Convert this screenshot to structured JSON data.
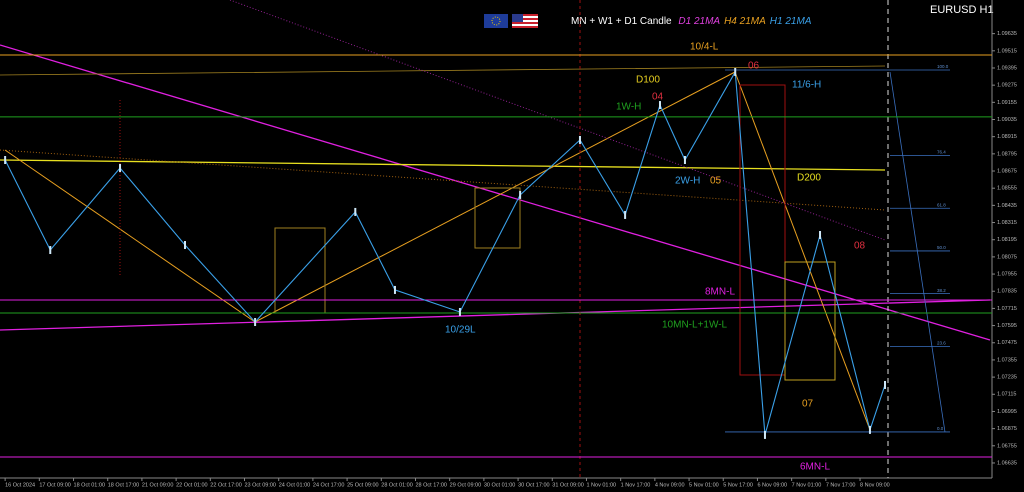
{
  "chart_data": {
    "type": "line",
    "symbol": "EURUSD H1",
    "header": {
      "main": "MN + W1 + D1 Candle",
      "ma": [
        {
          "name": "D1 21MA",
          "color": "#e040e0"
        },
        {
          "name": "H4 21MA",
          "color": "#e8a020"
        },
        {
          "name": "H1 21MA",
          "color": "#3aa0e8"
        }
      ]
    },
    "categories": [
      "16 Oct 2024",
      "17 Oct 09:00",
      "18 Oct 01:00",
      "18 Oct 17:00",
      "21 Oct 09:00",
      "22 Oct 01:00",
      "22 Oct 17:00",
      "23 Oct 09:00",
      "24 Oct 01:00",
      "24 Oct 17:00",
      "25 Oct 09:00",
      "28 Oct 01:00",
      "28 Oct 17:00",
      "29 Oct 09:00",
      "30 Oct 01:00",
      "30 Oct 17:00",
      "31 Oct 09:00",
      "1 Nov 01:00",
      "1 Nov 17:00",
      "4 Nov 09:00",
      "5 Nov 01:00",
      "5 Nov 17:00",
      "6 Nov 09:00",
      "7 Nov 01:00",
      "7 Nov 17:00",
      "8 Nov 09:00"
    ],
    "xlim": [
      -0.15,
      25.73
    ],
    "series": [
      {
        "name": "price",
        "color": "#3aa0e8",
        "x": [
          0,
          1.32,
          3.36,
          5.26,
          7.31,
          10.24,
          11.4,
          13.3,
          15.06,
          16.81,
          18.13,
          19.15,
          19.88,
          21.35,
          22.22,
          23.83,
          25.29,
          25.73
        ],
        "values": [
          1.08752,
          1.08123,
          1.08696,
          1.08158,
          1.0762,
          1.08389,
          1.07844,
          1.0769,
          1.08508,
          1.08892,
          1.08368,
          1.09136,
          1.08752,
          1.09367,
          1.06831,
          1.08228,
          1.06866,
          1.0718
        ]
      }
    ],
    "ylim": [
      1.0653,
      1.0987
    ],
    "yticks": [
      1.06635,
      1.06755,
      1.06875,
      1.06995,
      1.07115,
      1.07235,
      1.07355,
      1.07475,
      1.07595,
      1.07715,
      1.07835,
      1.07955,
      1.08075,
      1.08195,
      1.08315,
      1.08435,
      1.08555,
      1.08675,
      1.08795,
      1.08915,
      1.09035,
      1.09155,
      1.09275,
      1.09395,
      1.09515,
      1.09635
    ],
    "levels": [
      {
        "name": "10/4-L",
        "value": 1.09486,
        "color": "#e8a020"
      },
      {
        "name": "1W-H",
        "value": 1.09053,
        "color": "#1fa01f"
      },
      {
        "name": "8MN-L",
        "value": 1.07774,
        "color": "#e020e0"
      },
      {
        "name": "10MN-L+1W-L",
        "value": 1.07683,
        "color": "#1fa01f"
      },
      {
        "name": "6MN-L",
        "value": 1.06677,
        "color": "#e020e0"
      }
    ],
    "annotations": [
      "D100",
      "06",
      "11/6-H",
      "04",
      "2W-H",
      "05",
      "D200",
      "08",
      "10/29L",
      "07"
    ],
    "fib": {
      "high": 1.09381,
      "low": 1.06852,
      "levels": [
        0,
        23.6,
        38.2,
        50,
        61.8,
        76.4,
        100
      ],
      "value_labels": [
        "0.0",
        "23.6",
        "38.2",
        "50.0",
        "61.8",
        "76.4",
        "100.0"
      ]
    },
    "grid": false
  }
}
